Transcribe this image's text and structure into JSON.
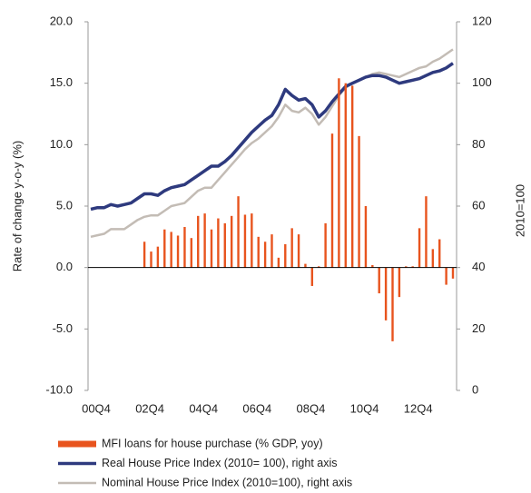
{
  "chart_data": {
    "type": "bar_line",
    "ylabel": "Rate of change y-o-y (%)",
    "y2label": "2010=100",
    "categories": [
      "00Q4",
      null,
      null,
      null,
      null,
      null,
      null,
      null,
      "02Q4",
      null,
      null,
      null,
      null,
      null,
      null,
      null,
      "04Q4",
      null,
      null,
      null,
      null,
      null,
      null,
      null,
      "06Q4",
      null,
      null,
      null,
      null,
      null,
      null,
      null,
      "08Q4",
      null,
      null,
      null,
      null,
      null,
      null,
      null,
      "10Q4",
      null,
      null,
      null,
      null,
      null,
      null,
      null,
      "12Q4",
      null,
      null,
      null,
      null,
      null,
      null
    ],
    "ylim": [
      -10,
      20
    ],
    "yticks": [
      {
        "value": -10,
        "label": "-10.0"
      },
      {
        "value": -5,
        "label": "-5.0"
      },
      {
        "value": 0,
        "label": "0.0"
      },
      {
        "value": 5,
        "label": "5.0"
      },
      {
        "value": 10,
        "label": "10.0"
      },
      {
        "value": 15,
        "label": "15.0"
      },
      {
        "value": 20,
        "label": "20.0"
      }
    ],
    "y2lim": [
      0,
      120
    ],
    "y2ticks": [
      0,
      20,
      40,
      60,
      80,
      100,
      120
    ],
    "series": [
      {
        "name": "MFI loans for house purchase (% GDP, yoy)",
        "type": "bar",
        "color": "#e8541e",
        "values": [
          null,
          null,
          null,
          null,
          null,
          null,
          null,
          null,
          2.1,
          1.3,
          1.7,
          3.1,
          2.9,
          2.6,
          3.3,
          2.4,
          4.2,
          4.4,
          3.1,
          4.0,
          3.6,
          4.2,
          5.8,
          4.3,
          4.4,
          2.5,
          2.1,
          2.7,
          0.8,
          1.9,
          3.2,
          2.7,
          0.3,
          -1.5,
          0.1,
          3.6,
          10.9,
          15.4,
          15.0,
          14.8,
          10.7,
          5.0,
          0.2,
          -2.1,
          -4.3,
          -6.0,
          -2.4,
          0.1,
          0.1,
          3.2,
          5.8,
          1.5,
          2.3,
          -1.4,
          -0.9
        ]
      },
      {
        "name": "Real House Price Index (2010= 100), right axis",
        "type": "line",
        "axis": "y2",
        "color": "#2e3a7e",
        "values": [
          59,
          59.5,
          59.5,
          60.5,
          60,
          60.5,
          61,
          62.5,
          64,
          64,
          63.5,
          65,
          66,
          66.5,
          67,
          68.5,
          70,
          71.5,
          73,
          73,
          74.5,
          76.5,
          79,
          81.5,
          84,
          86,
          88,
          89.5,
          93,
          98,
          96,
          94.5,
          95,
          93,
          89,
          91,
          94,
          96.5,
          99,
          100,
          101,
          102,
          102.5,
          102.5,
          102,
          101,
          100,
          100.5,
          101,
          101.5,
          102.5,
          103.5,
          104,
          105,
          106.5
        ]
      },
      {
        "name": "Nominal House Price Index (2010=100), right axis",
        "type": "line",
        "axis": "y2",
        "color": "#c3bcb5",
        "values": [
          50,
          50.5,
          51,
          52.5,
          52.5,
          52.5,
          54,
          55.5,
          56.5,
          57,
          57,
          58.5,
          60,
          60.5,
          61,
          63,
          65,
          66,
          66,
          68.5,
          71,
          73.5,
          76,
          78.5,
          80.5,
          82,
          84,
          86,
          89,
          93,
          91,
          90.5,
          92,
          90,
          86.5,
          89,
          92.5,
          96,
          98.5,
          100,
          101,
          102,
          103,
          103.5,
          103,
          102.5,
          102,
          103,
          104,
          105,
          105.5,
          107,
          108,
          109.5,
          111
        ]
      }
    ]
  }
}
